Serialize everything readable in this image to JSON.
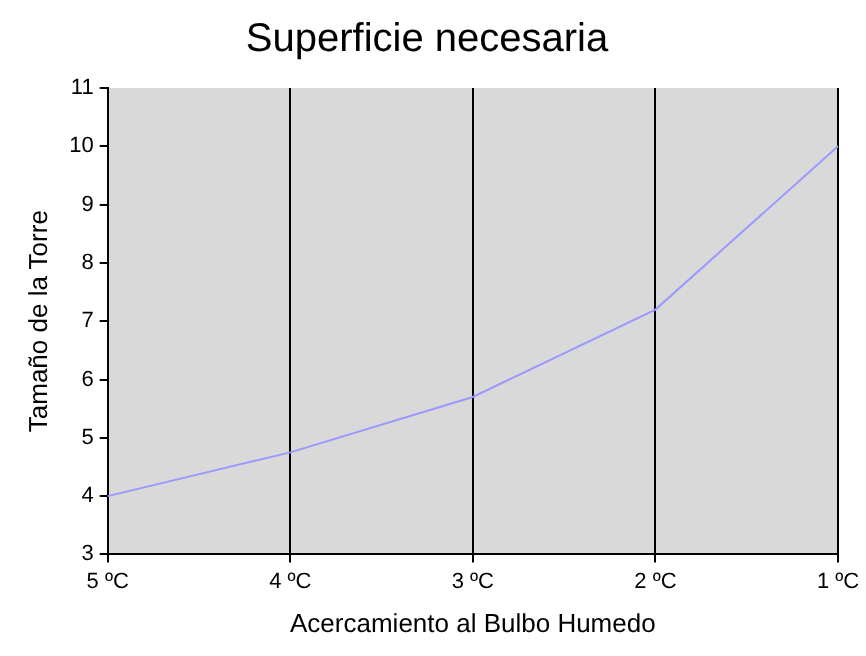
{
  "chart_data": {
    "type": "line",
    "title": "Superficie necesaria",
    "xlabel": "Acercamiento al Bulbo Humedo",
    "ylabel": "Tamaño de la Torre",
    "categories": [
      "5 ºC",
      "4 ºC",
      "3 ºC",
      "2 ºC",
      "1 ºC"
    ],
    "series": [
      {
        "color": "#9999ff",
        "values": [
          4,
          4.75,
          5.7,
          7.2,
          10
        ]
      }
    ],
    "ylim": [
      3,
      11
    ],
    "yticks": [
      3,
      4,
      5,
      6,
      7,
      8,
      9,
      10,
      11
    ],
    "grid": "x",
    "legend": false,
    "marker": "none",
    "line_style": "solid"
  }
}
